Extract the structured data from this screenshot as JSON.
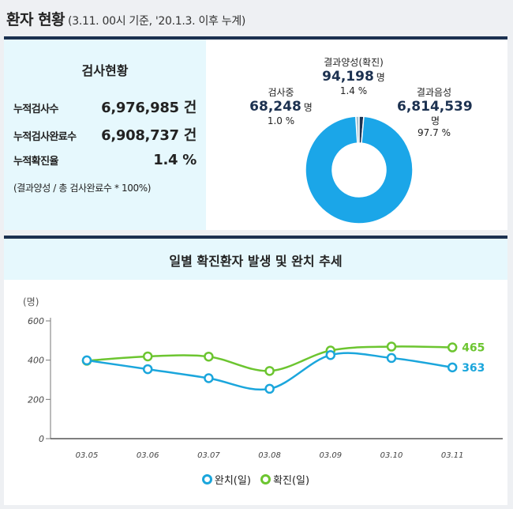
{
  "header": {
    "title": "환자 현황",
    "subtitle": "(3.11. 00시 기준, '20.1.3. 이후 누계)"
  },
  "test_status": {
    "title": "검사현황",
    "rows": [
      {
        "label": "누적검사수",
        "value": "6,976,985 건"
      },
      {
        "label": "누적검사완료수",
        "value": "6,908,737 건"
      },
      {
        "label": "누적확진율",
        "value": "1.4 %"
      }
    ],
    "note": "(결과양성 / 총 검사완료수 * 100%)"
  },
  "donut": {
    "segments": [
      {
        "name": "결과음성",
        "value": "6,814,539",
        "unit": "명",
        "pct": "97.7 %",
        "share": 97.7,
        "color": "#1ba6e8"
      },
      {
        "name": "검사중",
        "value": "68,248",
        "unit": "명",
        "pct": "1.0 %",
        "share": 1.0,
        "color": "#a7c2d0"
      },
      {
        "name": "결과양성(확진)",
        "value": "94,198",
        "unit": "명",
        "pct": "1.4 %",
        "share": 1.4,
        "color": "#1c3150"
      }
    ]
  },
  "chart_section": {
    "title": "일별 확진환자 발생 및 완치 추세"
  },
  "chart_data": {
    "type": "line",
    "ylabel": "(명)",
    "ylim": [
      0,
      600
    ],
    "yticks": [
      "0",
      "200",
      "400",
      "600"
    ],
    "categories": [
      "03.05",
      "03.06",
      "03.07",
      "03.08",
      "03.09",
      "03.10",
      "03.11"
    ],
    "series": [
      {
        "name": "완치(일)",
        "color": "#1ba6dc",
        "values": [
          399,
          354,
          308,
          254,
          426,
          411,
          363
        ],
        "end_label": "363"
      },
      {
        "name": "확진(일)",
        "color": "#6cc530",
        "values": [
          397,
          419,
          418,
          345,
          449,
          469,
          465
        ],
        "end_label": "465"
      }
    ],
    "grid": false,
    "legend_position": "bottom"
  }
}
